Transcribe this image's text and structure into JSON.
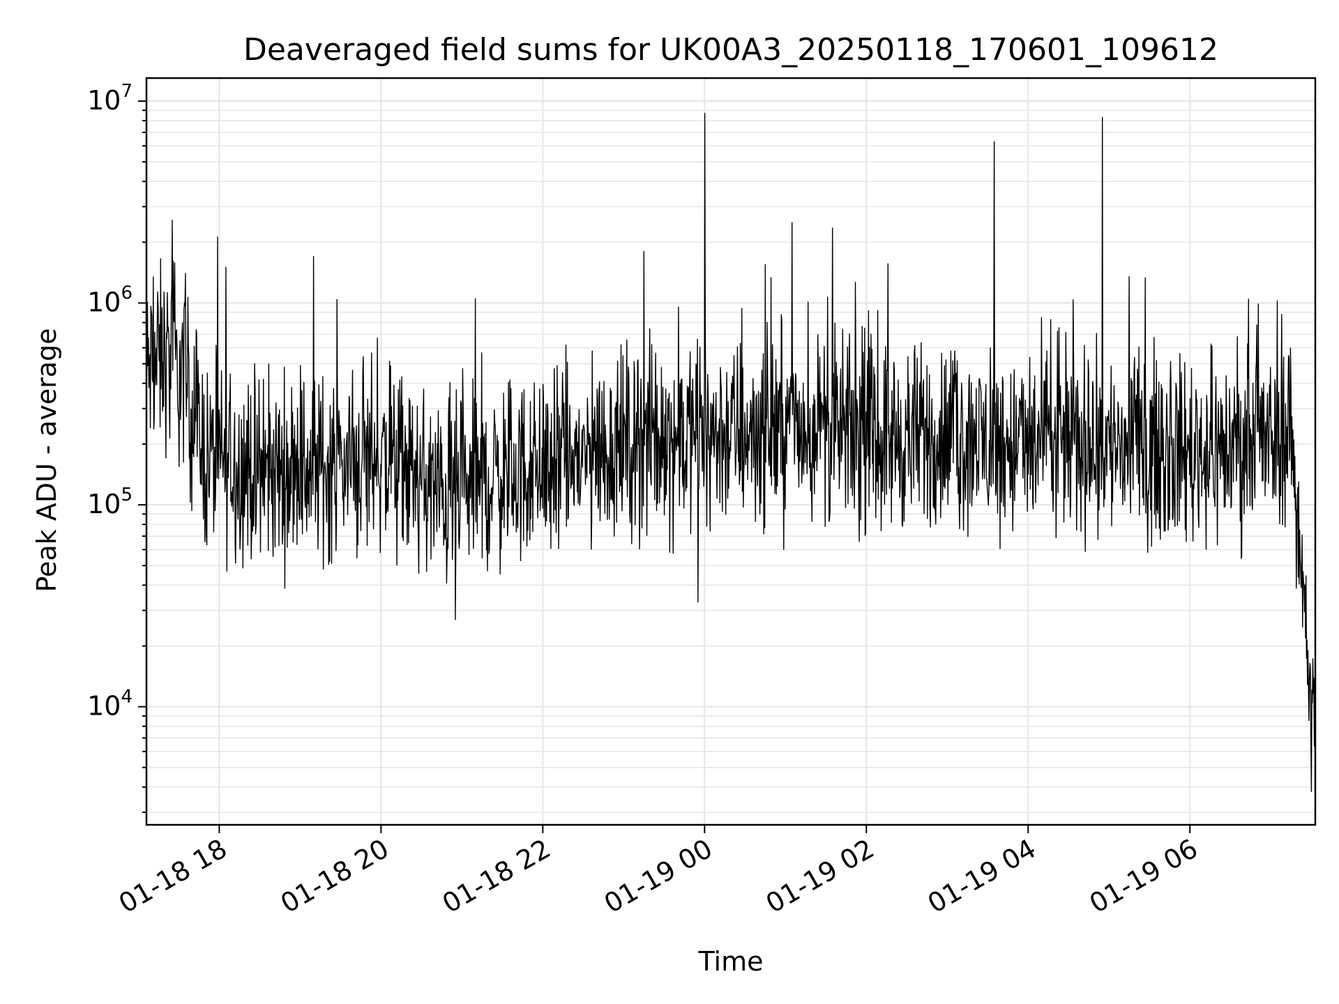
{
  "chart_data": {
    "type": "line",
    "title": "Deaveraged field sums for UK00A3_20250118_170601_109612",
    "xlabel": "Time",
    "ylabel": "Peak ADU - average",
    "y_scale": "log",
    "ylim": [
      2600,
      13000000
    ],
    "xlim": [
      "2025-01-18 17:06",
      "2025-01-19 07:33"
    ],
    "x_ticks": [
      {
        "label": "01-18 18",
        "value": "2025-01-18 18:00"
      },
      {
        "label": "01-18 20",
        "value": "2025-01-18 20:00"
      },
      {
        "label": "01-18 22",
        "value": "2025-01-18 22:00"
      },
      {
        "label": "01-19 00",
        "value": "2025-01-19 00:00"
      },
      {
        "label": "01-19 02",
        "value": "2025-01-19 02:00"
      },
      {
        "label": "01-19 04",
        "value": "2025-01-19 04:00"
      },
      {
        "label": "01-19 06",
        "value": "2025-01-19 06:00"
      }
    ],
    "y_ticks": [
      {
        "base": "10",
        "exp": "4",
        "value": 10000
      },
      {
        "base": "10",
        "exp": "5",
        "value": 100000
      },
      {
        "base": "10",
        "exp": "6",
        "value": 1000000
      },
      {
        "base": "10",
        "exp": "7",
        "value": 10000000
      }
    ],
    "grid": true,
    "line_color": "#000000",
    "grid_color": "#e6e6e6",
    "series": [
      {
        "x": [
          "2025-01-18 17:06",
          "2025-01-18 17:20",
          "2025-01-18 17:35",
          "2025-01-18 17:50",
          "2025-01-18 18:10",
          "2025-01-18 18:30",
          "2025-01-18 19:00",
          "2025-01-18 19:30",
          "2025-01-18 20:00",
          "2025-01-18 20:30",
          "2025-01-18 20:45",
          "2025-01-18 21:00",
          "2025-01-18 21:30",
          "2025-01-18 22:00",
          "2025-01-18 22:30",
          "2025-01-18 23:00",
          "2025-01-18 23:30",
          "2025-01-19 00:00",
          "2025-01-19 00:30",
          "2025-01-19 01:00",
          "2025-01-19 01:30",
          "2025-01-19 02:00",
          "2025-01-19 02:30",
          "2025-01-19 03:00",
          "2025-01-19 03:30",
          "2025-01-19 04:00",
          "2025-01-19 04:30",
          "2025-01-19 05:00",
          "2025-01-19 05:30",
          "2025-01-19 06:00",
          "2025-01-19 06:30",
          "2025-01-19 07:00",
          "2025-01-19 07:10",
          "2025-01-19 07:15",
          "2025-01-19 07:20",
          "2025-01-19 07:25",
          "2025-01-19 07:28",
          "2025-01-19 07:30",
          "2025-01-19 07:33"
        ],
        "y": [
          450000,
          550000,
          400000,
          170000,
          160000,
          140000,
          150000,
          160000,
          170000,
          130000,
          110000,
          115000,
          140000,
          150000,
          170000,
          200000,
          210000,
          220000,
          230000,
          240000,
          230000,
          220000,
          210000,
          215000,
          200000,
          195000,
          200000,
          195000,
          190000,
          185000,
          190000,
          200000,
          230000,
          250000,
          80000,
          40000,
          15000,
          9000,
          12000
        ]
      }
    ],
    "spikes": [
      {
        "x": "2025-01-18 17:35",
        "y": 1400000
      },
      {
        "x": "2025-01-18 18:05",
        "y": 1500000
      },
      {
        "x": "2025-01-18 19:10",
        "y": 1700000
      },
      {
        "x": "2025-01-18 21:10",
        "y": 1050000
      },
      {
        "x": "2025-01-18 23:15",
        "y": 1800000
      },
      {
        "x": "2025-01-19 00:00",
        "y": 8700000
      },
      {
        "x": "2025-01-19 01:05",
        "y": 2500000
      },
      {
        "x": "2025-01-19 01:35",
        "y": 2350000
      },
      {
        "x": "2025-01-19 03:35",
        "y": 6300000
      },
      {
        "x": "2025-01-19 04:55",
        "y": 8300000
      },
      {
        "x": "2025-01-19 05:15",
        "y": 1350000
      },
      {
        "x": "2025-01-19 00:45",
        "y": 1550000
      },
      {
        "x": "2025-01-18 20:55",
        "y": 27000
      },
      {
        "x": "2025-01-18 23:55",
        "y": 33000
      },
      {
        "x": "2025-01-19 07:30",
        "y": 3800
      }
    ]
  }
}
